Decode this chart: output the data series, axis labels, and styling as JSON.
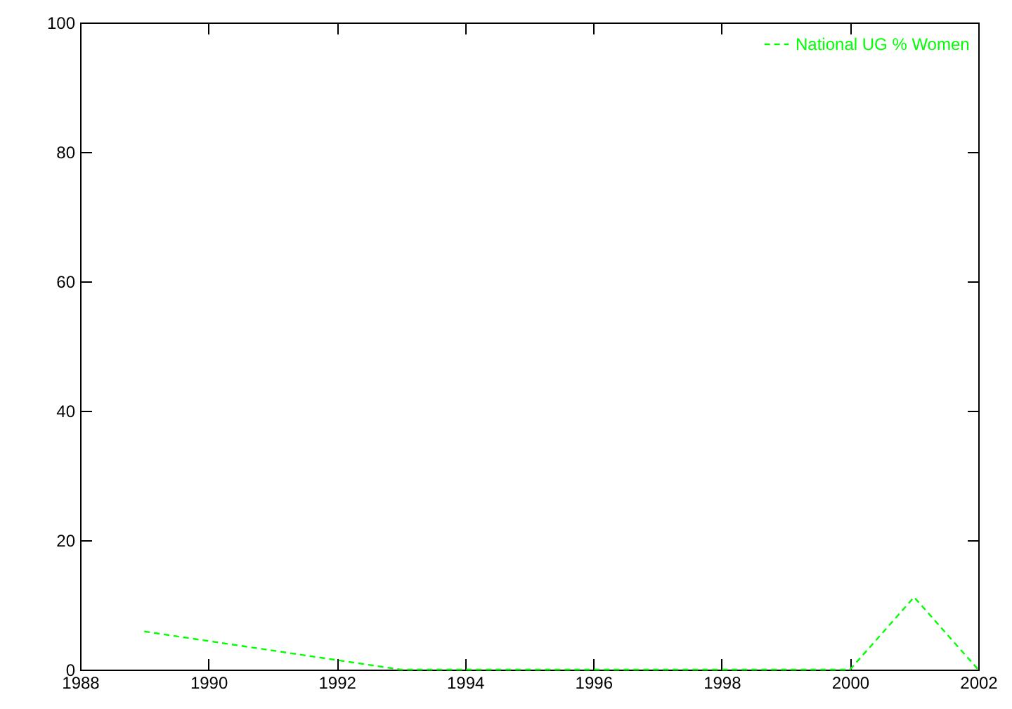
{
  "chart_data": {
    "type": "line",
    "x": [
      1989,
      1993,
      1994,
      1995,
      1996,
      1997,
      1998,
      1999,
      2000,
      2001,
      2002
    ],
    "series": [
      {
        "name": "National UG % Women",
        "color": "#00ff00",
        "values": [
          5.9,
          0,
          0,
          0,
          0,
          0,
          0,
          0,
          0,
          11.2,
          0
        ]
      }
    ],
    "xlim": [
      1988,
      2002
    ],
    "xticks": [
      1988,
      1990,
      1992,
      1994,
      1996,
      1998,
      2000,
      2002
    ],
    "ylim": [
      0,
      100
    ],
    "yticks": [
      0,
      20,
      40,
      60,
      80,
      100
    ],
    "grid": false,
    "legend": "top right",
    "line_style": "dashed",
    "marker": "none"
  }
}
